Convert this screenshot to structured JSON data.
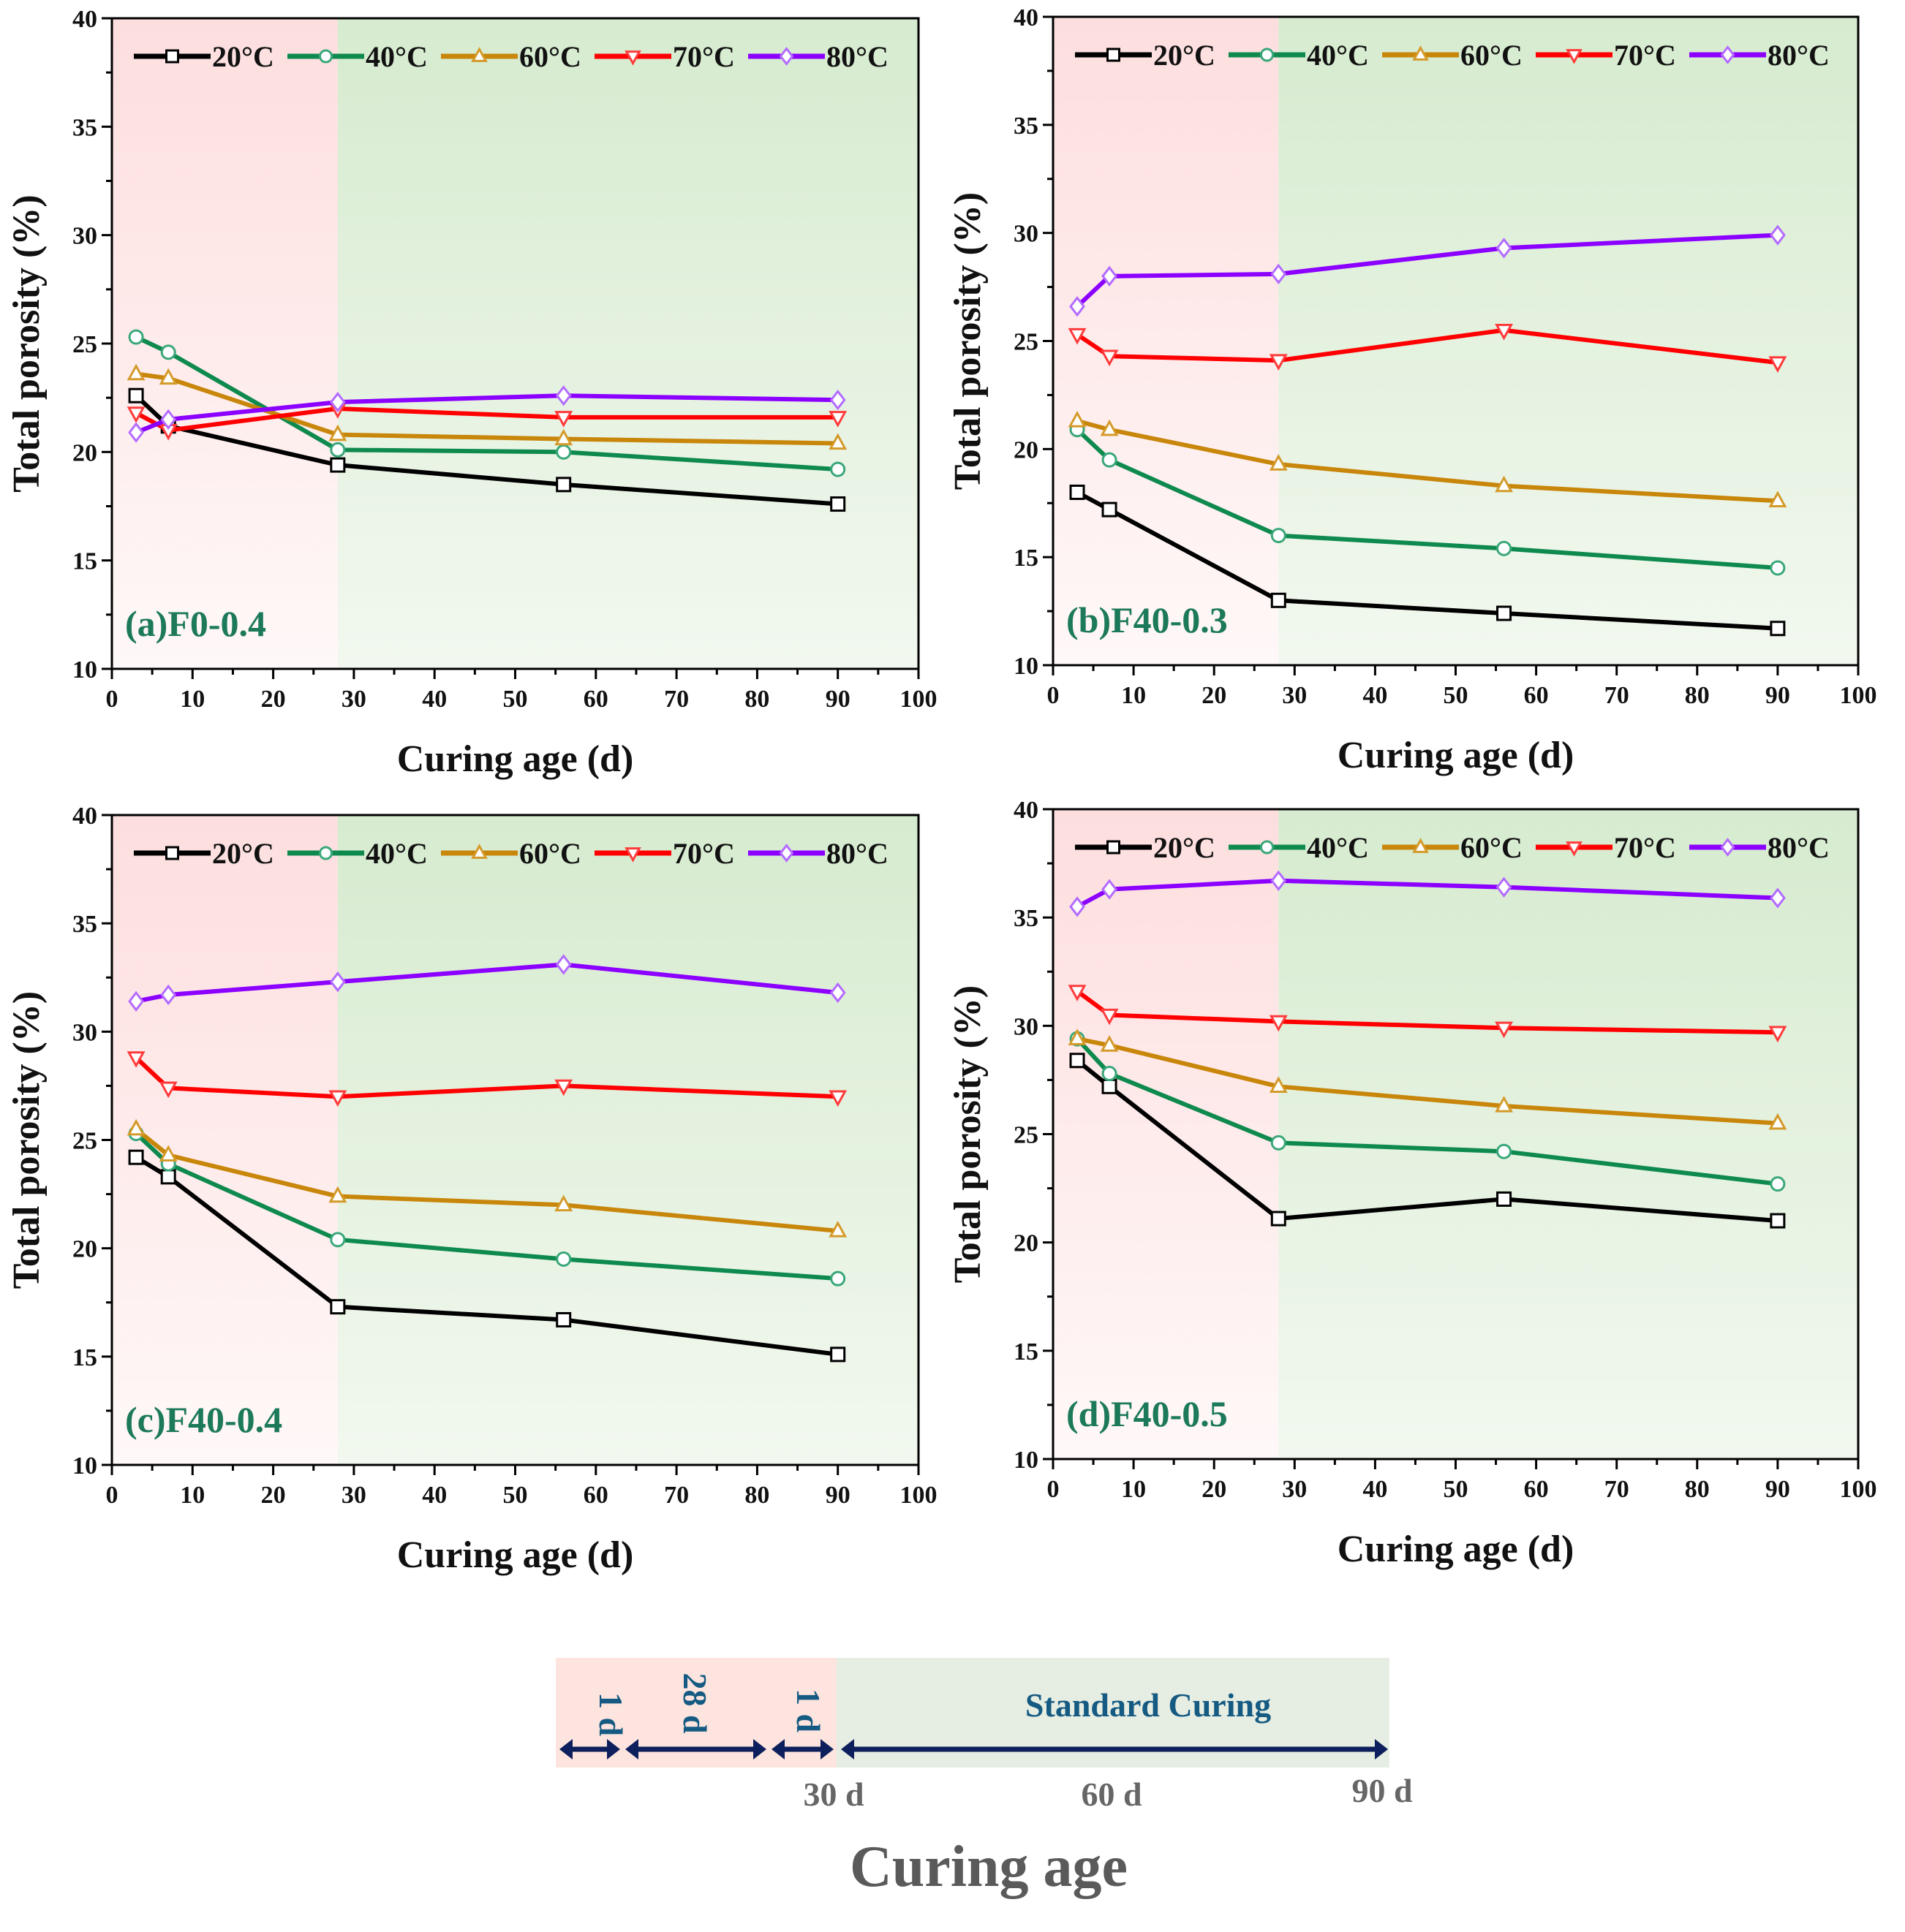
{
  "chart_data": [
    {
      "type": "line",
      "panel_label": "(a)F0-0.4",
      "xlabel": "Curing age (d)",
      "ylabel": "Total porosity (%)",
      "xlim": [
        0,
        100
      ],
      "ylim": [
        10,
        40
      ],
      "xticks": [
        0,
        10,
        20,
        30,
        40,
        50,
        60,
        70,
        80,
        90,
        100
      ],
      "yticks": [
        10,
        15,
        20,
        25,
        30,
        35,
        40
      ],
      "x": [
        3,
        7,
        28,
        56,
        90
      ],
      "shaded_regions": [
        {
          "from": 0,
          "to": 28,
          "color": "#fde3e3"
        },
        {
          "from": 28,
          "to": 100,
          "color": "#dcefd6"
        }
      ],
      "legend_position": "top",
      "series": [
        {
          "name": "20°C",
          "color": "#000000",
          "marker": "square",
          "values": [
            22.6,
            21.2,
            19.4,
            18.5,
            17.6
          ]
        },
        {
          "name": "40°C",
          "color": "#0f8a4f",
          "marker": "circle",
          "values": [
            25.3,
            24.6,
            20.1,
            20.0,
            19.2
          ]
        },
        {
          "name": "60°C",
          "color": "#c8860a",
          "marker": "triangle-up",
          "values": [
            23.6,
            23.4,
            20.8,
            20.6,
            20.4
          ]
        },
        {
          "name": "70°C",
          "color": "#ff0000",
          "marker": "triangle-down",
          "values": [
            21.8,
            21.0,
            22.0,
            21.6,
            21.6
          ]
        },
        {
          "name": "80°C",
          "color": "#8b00ff",
          "marker": "diamond",
          "values": [
            20.9,
            21.5,
            22.3,
            22.6,
            22.4
          ]
        }
      ]
    },
    {
      "type": "line",
      "panel_label": "(b)F40-0.3",
      "xlabel": "Curing age (d)",
      "ylabel": "Total porosity (%)",
      "xlim": [
        0,
        100
      ],
      "ylim": [
        10,
        40
      ],
      "xticks": [
        0,
        10,
        20,
        30,
        40,
        50,
        60,
        70,
        80,
        90,
        100
      ],
      "yticks": [
        10,
        15,
        20,
        25,
        30,
        35,
        40
      ],
      "x": [
        3,
        7,
        28,
        56,
        90
      ],
      "shaded_regions": [
        {
          "from": 0,
          "to": 28,
          "color": "#fde3e3"
        },
        {
          "from": 28,
          "to": 100,
          "color": "#dcefd6"
        }
      ],
      "legend_position": "top",
      "series": [
        {
          "name": "20°C",
          "color": "#000000",
          "marker": "square",
          "values": [
            18.0,
            17.2,
            13.0,
            12.4,
            11.7
          ]
        },
        {
          "name": "40°C",
          "color": "#0f8a4f",
          "marker": "circle",
          "values": [
            20.9,
            19.5,
            16.0,
            15.4,
            14.5
          ]
        },
        {
          "name": "60°C",
          "color": "#c8860a",
          "marker": "triangle-up",
          "values": [
            21.3,
            20.9,
            19.3,
            18.3,
            17.6
          ]
        },
        {
          "name": "70°C",
          "color": "#ff0000",
          "marker": "triangle-down",
          "values": [
            25.3,
            24.3,
            24.1,
            25.5,
            24.0
          ]
        },
        {
          "name": "80°C",
          "color": "#8b00ff",
          "marker": "diamond",
          "values": [
            26.6,
            28.0,
            28.1,
            29.3,
            29.9
          ]
        }
      ]
    },
    {
      "type": "line",
      "panel_label": "(c)F40-0.4",
      "xlabel": "Curing age (d)",
      "ylabel": "Total porosity (%)",
      "xlim": [
        0,
        100
      ],
      "ylim": [
        10,
        40
      ],
      "xticks": [
        0,
        10,
        20,
        30,
        40,
        50,
        60,
        70,
        80,
        90,
        100
      ],
      "yticks": [
        10,
        15,
        20,
        25,
        30,
        35,
        40
      ],
      "x": [
        3,
        7,
        28,
        56,
        90
      ],
      "shaded_regions": [
        {
          "from": 0,
          "to": 28,
          "color": "#fde3e3"
        },
        {
          "from": 28,
          "to": 100,
          "color": "#dcefd6"
        }
      ],
      "legend_position": "top",
      "series": [
        {
          "name": "20°C",
          "color": "#000000",
          "marker": "square",
          "values": [
            24.2,
            23.3,
            17.3,
            16.7,
            15.1
          ]
        },
        {
          "name": "40°C",
          "color": "#0f8a4f",
          "marker": "circle",
          "values": [
            25.3,
            23.9,
            20.4,
            19.5,
            18.6
          ]
        },
        {
          "name": "60°C",
          "color": "#c8860a",
          "marker": "triangle-up",
          "values": [
            25.5,
            24.3,
            22.4,
            22.0,
            20.8
          ]
        },
        {
          "name": "70°C",
          "color": "#ff0000",
          "marker": "triangle-down",
          "values": [
            28.8,
            27.4,
            27.0,
            27.5,
            27.0
          ]
        },
        {
          "name": "80°C",
          "color": "#8b00ff",
          "marker": "diamond",
          "values": [
            31.4,
            31.7,
            32.3,
            33.1,
            31.8
          ]
        }
      ]
    },
    {
      "type": "line",
      "panel_label": "(d)F40-0.5",
      "xlabel": "Curing age (d)",
      "ylabel": "Total porosity (%)",
      "xlim": [
        0,
        100
      ],
      "ylim": [
        10,
        40
      ],
      "xticks": [
        0,
        10,
        20,
        30,
        40,
        50,
        60,
        70,
        80,
        90,
        100
      ],
      "yticks": [
        10,
        15,
        20,
        25,
        30,
        35,
        40
      ],
      "x": [
        3,
        7,
        28,
        56,
        90
      ],
      "shaded_regions": [
        {
          "from": 0,
          "to": 28,
          "color": "#fde3e3"
        },
        {
          "from": 28,
          "to": 100,
          "color": "#dcefd6"
        }
      ],
      "legend_position": "top",
      "series": [
        {
          "name": "20°C",
          "color": "#000000",
          "marker": "square",
          "values": [
            28.4,
            27.2,
            21.1,
            22.0,
            21.0
          ]
        },
        {
          "name": "40°C",
          "color": "#0f8a4f",
          "marker": "circle",
          "values": [
            29.4,
            27.8,
            24.6,
            24.2,
            22.7
          ]
        },
        {
          "name": "60°C",
          "color": "#c8860a",
          "marker": "triangle-up",
          "values": [
            29.4,
            29.1,
            27.2,
            26.3,
            25.5
          ]
        },
        {
          "name": "70°C",
          "color": "#ff0000",
          "marker": "triangle-down",
          "values": [
            31.6,
            30.5,
            30.2,
            29.9,
            29.7
          ]
        },
        {
          "name": "80°C",
          "color": "#8b00ff",
          "marker": "diamond",
          "values": [
            35.5,
            36.3,
            36.7,
            36.4,
            35.9
          ]
        }
      ]
    }
  ],
  "curing_diagram": {
    "title": "Curing age",
    "segments": [
      {
        "label": "1 d",
        "days": 1,
        "phase": "heat"
      },
      {
        "label": "28 d",
        "days": 28,
        "phase": "heat"
      },
      {
        "label": "1 d",
        "days": 1,
        "phase": "heat"
      },
      {
        "label": "Standard Curing",
        "days": 60,
        "phase": "standard"
      }
    ],
    "day_marks": [
      "30 d",
      "60 d",
      "90 d"
    ],
    "colors": {
      "heat": "#fde4de",
      "standard": "#e6ede2",
      "arrow": "#0d1f5c",
      "label": "#155a82"
    }
  }
}
